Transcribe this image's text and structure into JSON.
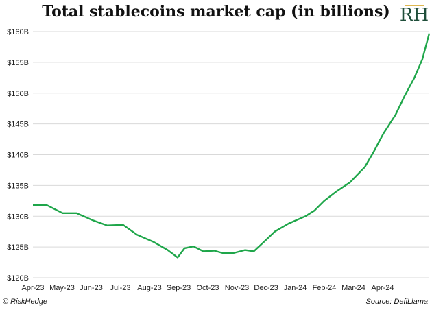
{
  "title": "Total stablecoins market cap (in billions)",
  "logo_text": "RH",
  "footer": {
    "credit": "© RiskHedge",
    "source": "Source: DefiLlama"
  },
  "colors": {
    "line": "#1fa64a",
    "grid": "#d9d9d9"
  },
  "chart_data": {
    "type": "line",
    "title": "Total stablecoins market cap (in billions)",
    "xlabel": "",
    "ylabel": "",
    "ylim": [
      120,
      160
    ],
    "grid": true,
    "x_ticks": [
      "Apr-23",
      "May-23",
      "Jun-23",
      "Jul-23",
      "Aug-23",
      "Sep-23",
      "Oct-23",
      "Nov-23",
      "Dec-23",
      "Jan-24",
      "Feb-24",
      "Mar-24",
      "Apr-24"
    ],
    "y_ticks": [
      "$120B",
      "$125B",
      "$130B",
      "$135B",
      "$140B",
      "$145B",
      "$150B",
      "$155B",
      "$160B"
    ],
    "series": [
      {
        "x": [
          "2023-04-01",
          "2023-04-15",
          "2023-05-01",
          "2023-05-15",
          "2023-06-01",
          "2023-06-15",
          "2023-07-01",
          "2023-07-15",
          "2023-08-01",
          "2023-08-15",
          "2023-08-25",
          "2023-09-01",
          "2023-09-10",
          "2023-09-20",
          "2023-10-01",
          "2023-10-10",
          "2023-10-20",
          "2023-11-01",
          "2023-11-10",
          "2023-11-20",
          "2023-12-01",
          "2023-12-15",
          "2024-01-01",
          "2024-01-10",
          "2024-01-20",
          "2024-02-01",
          "2024-02-15",
          "2024-03-01",
          "2024-03-10",
          "2024-03-20",
          "2024-04-01",
          "2024-04-10",
          "2024-04-20",
          "2024-04-28",
          "2024-05-05"
        ],
        "values": [
          131.8,
          131.8,
          130.5,
          130.5,
          129.3,
          128.5,
          128.6,
          127.0,
          125.8,
          124.5,
          123.3,
          124.8,
          125.1,
          124.3,
          124.4,
          124.0,
          124.0,
          124.5,
          124.3,
          125.8,
          127.5,
          128.8,
          130.0,
          130.9,
          132.5,
          134.0,
          135.5,
          138.0,
          140.5,
          143.5,
          146.5,
          149.5,
          152.5,
          155.5,
          159.7
        ]
      }
    ]
  }
}
